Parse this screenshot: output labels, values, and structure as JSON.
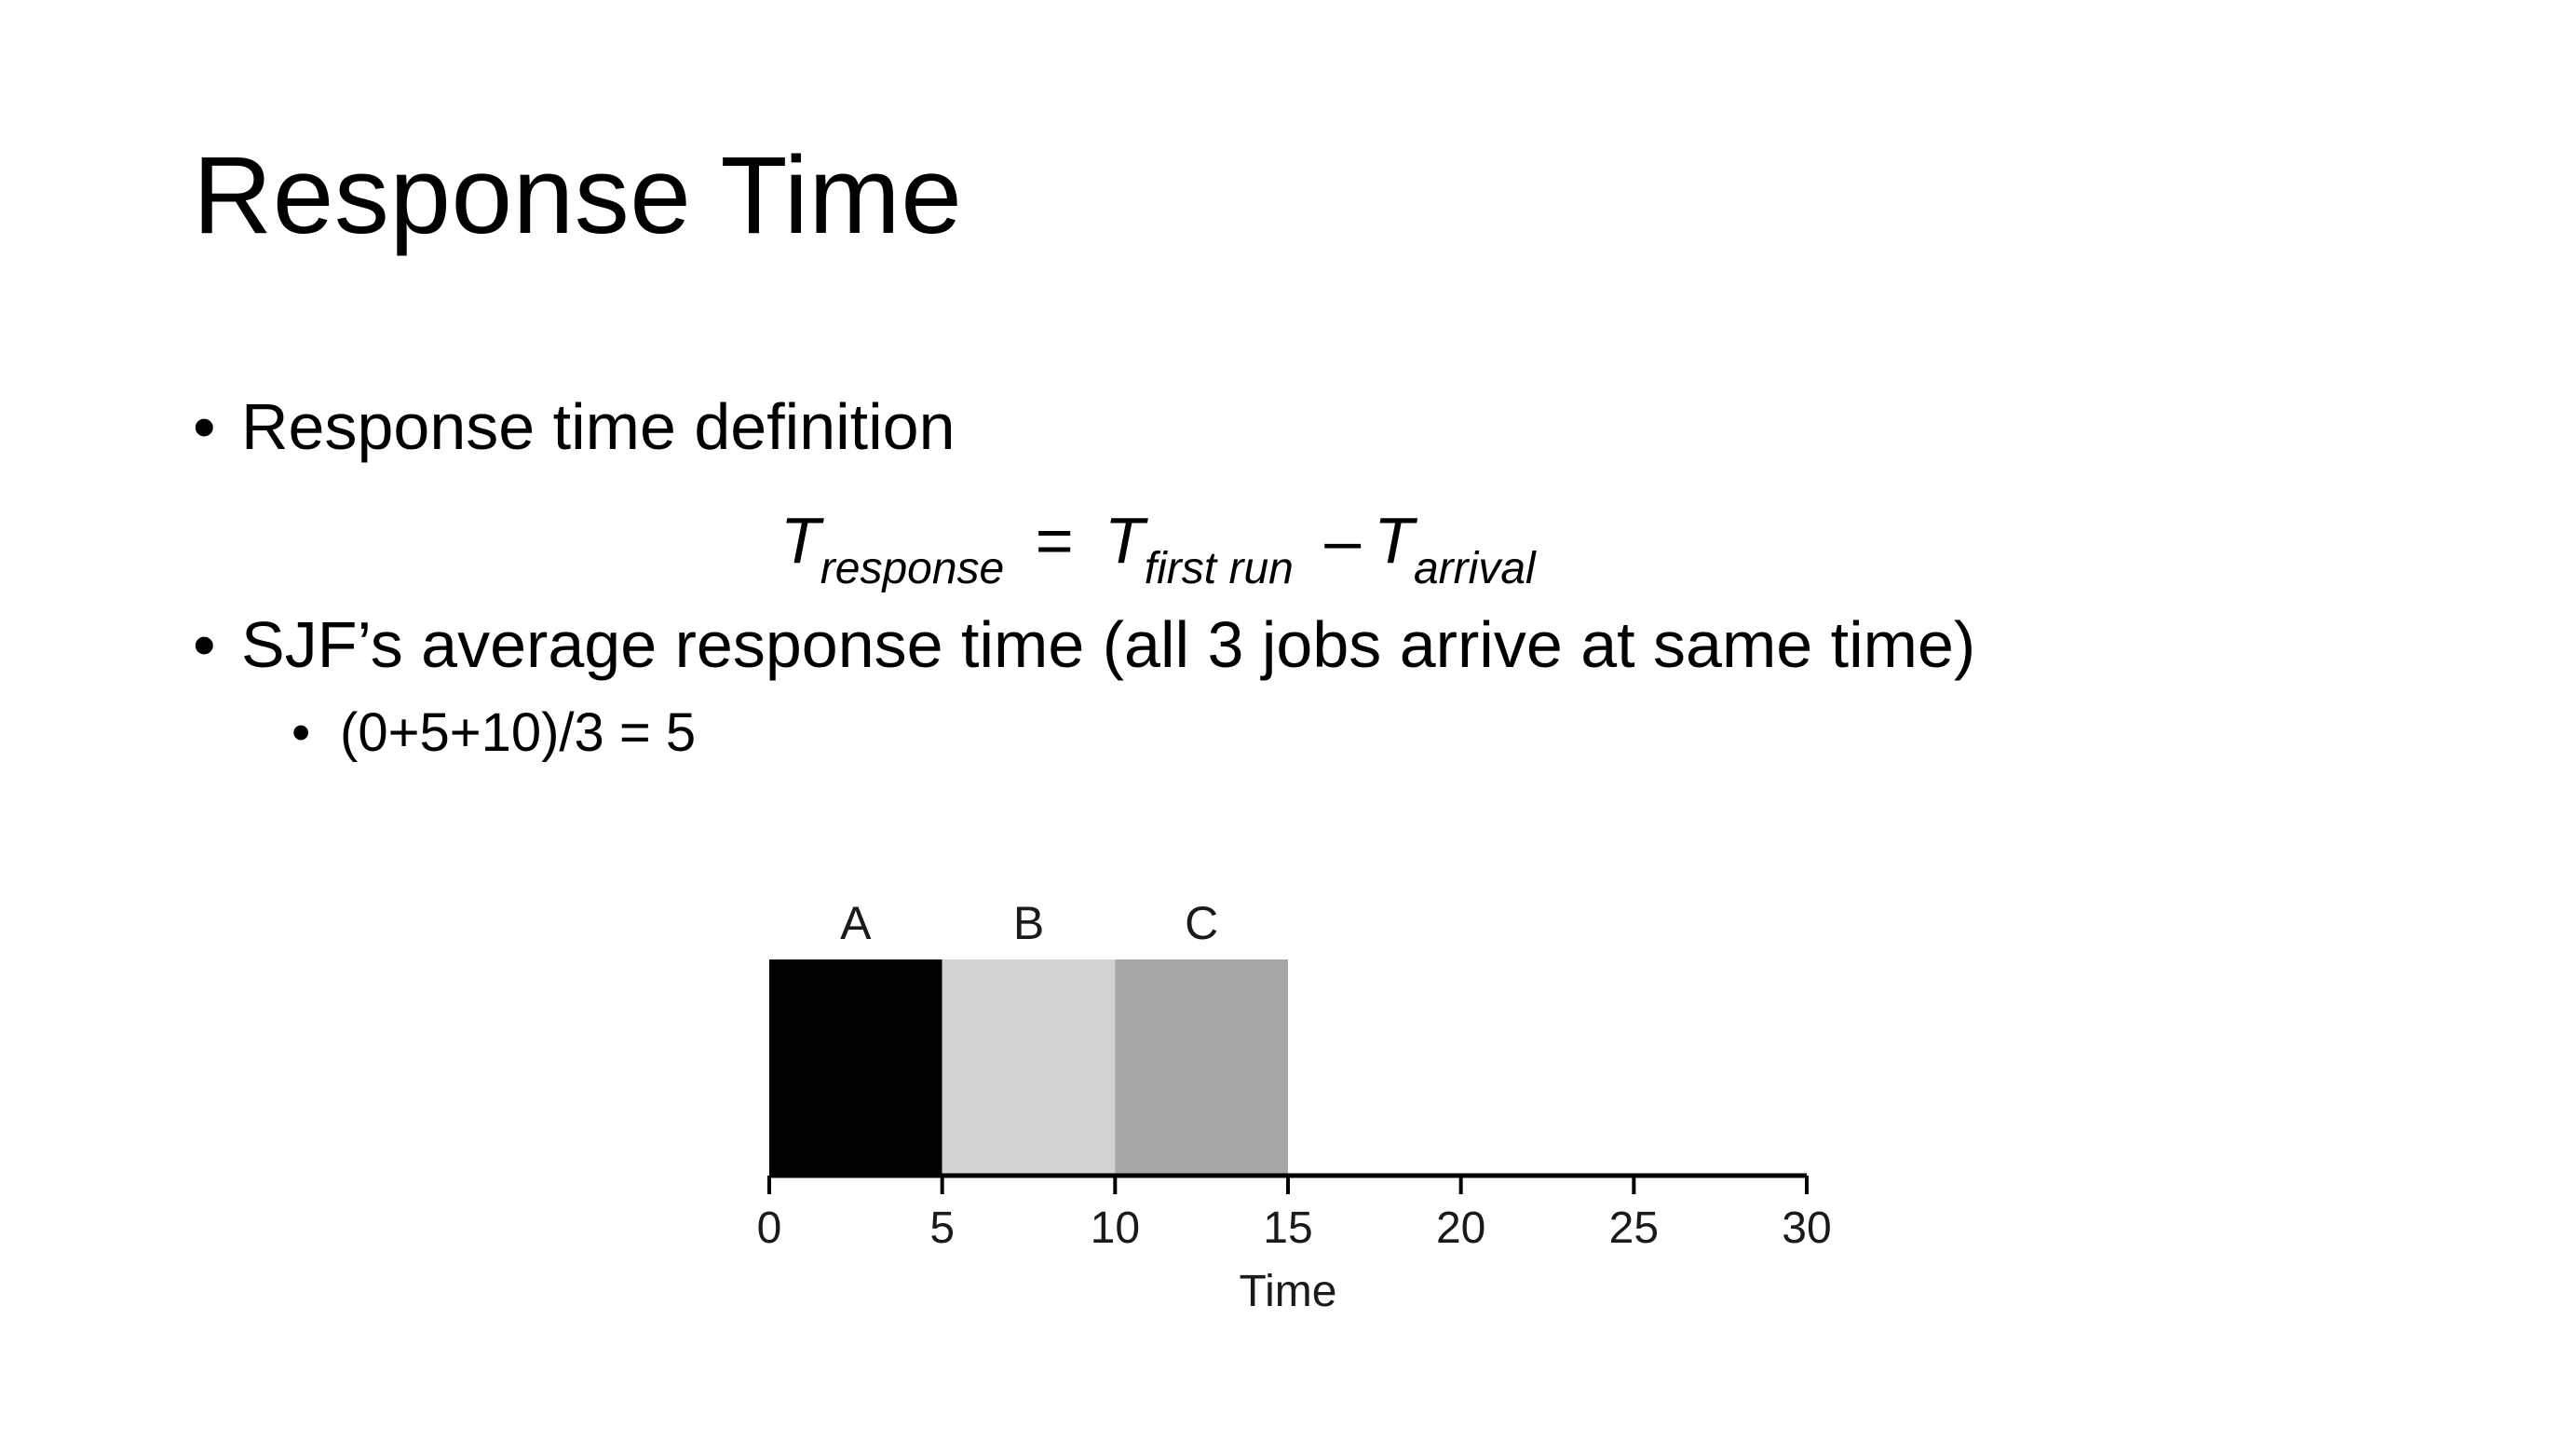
{
  "slide": {
    "title": "Response Time",
    "bullets": [
      {
        "marker": "•",
        "text": "Response time definition"
      },
      {
        "marker": "•",
        "text": "SJF’s average response time (all 3 jobs arrive at same time)"
      },
      {
        "marker": "•",
        "text": "(0+5+10)/3 = 5"
      }
    ],
    "formula": {
      "t1": "T",
      "t1_sub": "response",
      "eq": "=",
      "t2": "T",
      "t2_sub": "first run",
      "minus": "–",
      "t3": "T",
      "t3_sub": "arrival"
    }
  },
  "chart_data": {
    "type": "bar",
    "orientation": "gantt",
    "xlabel": "Time",
    "xlim": [
      0,
      30
    ],
    "xticks": [
      0,
      5,
      10,
      15,
      20,
      25,
      30
    ],
    "jobs": [
      {
        "label": "A",
        "start": 0,
        "end": 5,
        "color": "#000000"
      },
      {
        "label": "B",
        "start": 5,
        "end": 10,
        "color": "#d3d3d3"
      },
      {
        "label": "C",
        "start": 10,
        "end": 15,
        "color": "#a6a6a6"
      }
    ]
  }
}
